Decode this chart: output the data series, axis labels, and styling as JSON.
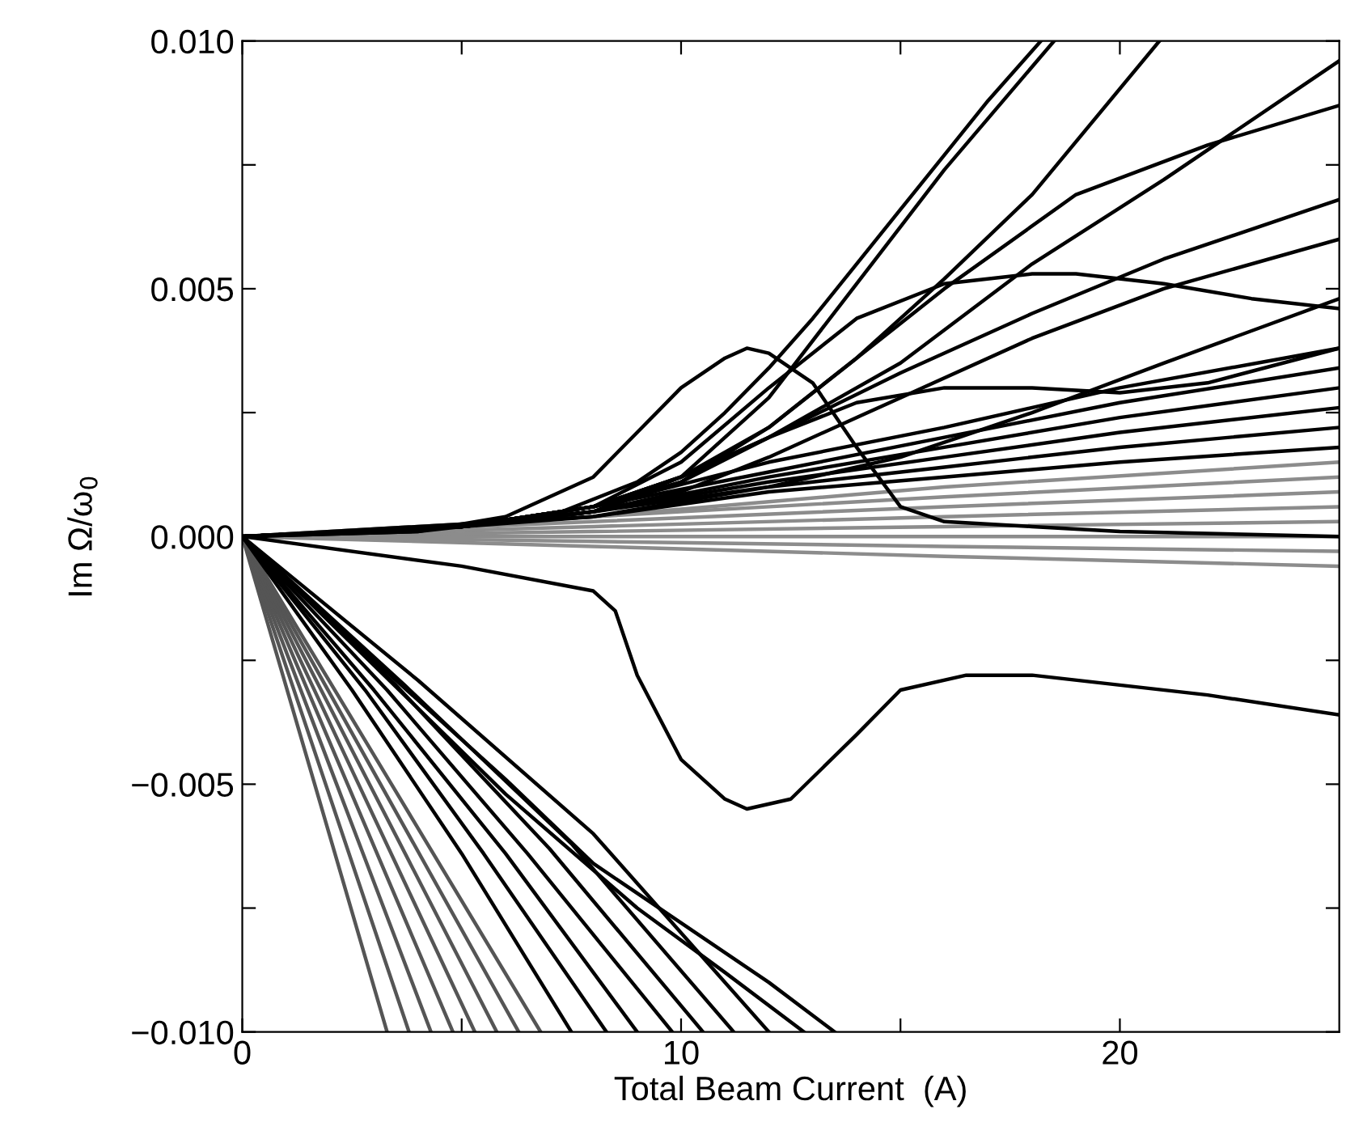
{
  "chart_data": {
    "type": "line",
    "xlabel": "Total Beam Current  (A)",
    "ylabel": "Im Ω/ω$_{0}$",
    "xlim": [
      0,
      25
    ],
    "ylim": [
      -0.01,
      0.01
    ],
    "xticks": [
      0,
      {
        "value": 5,
        "label": null
      },
      10,
      {
        "value": 15,
        "label": null
      },
      20
    ],
    "yticks": [
      {
        "value": -0.01,
        "label": "−0.010"
      },
      {
        "value": -0.0075,
        "label": null
      },
      {
        "value": -0.005,
        "label": "−0.005"
      },
      {
        "value": -0.0025,
        "label": null
      },
      {
        "value": 0.0,
        "label": "0.000"
      },
      {
        "value": 0.0025,
        "label": null
      },
      {
        "value": 0.005,
        "label": "0.005"
      },
      {
        "value": 0.0075,
        "label": null
      },
      {
        "value": 0.01,
        "label": "0.010"
      }
    ],
    "grid": false,
    "legend": false,
    "marker": "none",
    "line_style": "solid",
    "series": [
      {
        "color": "#8c8c8c",
        "x": [
          0,
          8,
          16,
          25
        ],
        "values": [
          0,
          -0.0002,
          -0.0004,
          -0.0006
        ]
      },
      {
        "color": "#8c8c8c",
        "x": [
          0,
          8,
          16,
          25
        ],
        "values": [
          0,
          -0.0001,
          -0.0002,
          -0.0003
        ]
      },
      {
        "color": "#8c8c8c",
        "x": [
          0,
          8,
          16,
          25
        ],
        "values": [
          0,
          0.0,
          0.0,
          0.0
        ]
      },
      {
        "color": "#8c8c8c",
        "x": [
          0,
          8,
          16,
          25
        ],
        "values": [
          0,
          0.0001,
          0.0002,
          0.0003
        ]
      },
      {
        "color": "#8c8c8c",
        "x": [
          0,
          8,
          16,
          25
        ],
        "values": [
          0,
          0.0002,
          0.0004,
          0.0006
        ]
      },
      {
        "color": "#8c8c8c",
        "x": [
          0,
          8,
          16,
          25
        ],
        "values": [
          0,
          0.0003,
          0.0006,
          0.0009
        ]
      },
      {
        "color": "#8c8c8c",
        "x": [
          0,
          8,
          16,
          25
        ],
        "values": [
          0,
          0.0004,
          0.0008,
          0.0012
        ]
      },
      {
        "color": "#8c8c8c",
        "x": [
          0,
          8,
          16,
          25
        ],
        "values": [
          0,
          0.0004,
          0.001,
          0.0015
        ]
      },
      {
        "color": "#000000",
        "x": [
          0,
          5,
          8,
          12,
          16,
          20,
          25
        ],
        "values": [
          0,
          0.0002,
          0.0004,
          0.0009,
          0.0012,
          0.0015,
          0.0018
        ]
      },
      {
        "color": "#000000",
        "x": [
          0,
          5,
          8,
          12,
          16,
          20,
          25
        ],
        "values": [
          0,
          0.0002,
          0.0005,
          0.001,
          0.0014,
          0.0018,
          0.0022
        ]
      },
      {
        "color": "#000000",
        "x": [
          0,
          5,
          8,
          12,
          16,
          20,
          25
        ],
        "values": [
          0,
          0.0002,
          0.0005,
          0.0011,
          0.0016,
          0.0021,
          0.0026
        ]
      },
      {
        "color": "#000000",
        "x": [
          0,
          5,
          8,
          12,
          16,
          20,
          25
        ],
        "values": [
          0,
          0.0002,
          0.0005,
          0.0012,
          0.0018,
          0.0024,
          0.003
        ]
      },
      {
        "color": "#000000",
        "x": [
          0,
          5,
          8,
          12,
          16,
          20,
          25
        ],
        "values": [
          0,
          0.0002,
          0.0006,
          0.0013,
          0.002,
          0.0027,
          0.0034
        ]
      },
      {
        "color": "#000000",
        "x": [
          0,
          5,
          8,
          12,
          16,
          20,
          25
        ],
        "values": [
          0,
          0.0002,
          0.0006,
          0.0015,
          0.0022,
          0.003,
          0.0038
        ]
      },
      {
        "color": "#555555",
        "x": [
          0,
          1.65,
          3.3
        ],
        "values": [
          0,
          -0.005,
          -0.01
        ]
      },
      {
        "color": "#555555",
        "x": [
          0,
          1.9,
          3.8
        ],
        "values": [
          0,
          -0.005,
          -0.01
        ]
      },
      {
        "color": "#555555",
        "x": [
          0,
          2.15,
          4.3
        ],
        "values": [
          0,
          -0.005,
          -0.01
        ]
      },
      {
        "color": "#555555",
        "x": [
          0,
          2.4,
          4.8
        ],
        "values": [
          0,
          -0.005,
          -0.01
        ]
      },
      {
        "color": "#555555",
        "x": [
          0,
          2.65,
          5.3
        ],
        "values": [
          0,
          -0.005,
          -0.01
        ]
      },
      {
        "color": "#555555",
        "x": [
          0,
          2.9,
          5.8
        ],
        "values": [
          0,
          -0.005,
          -0.01
        ]
      },
      {
        "color": "#555555",
        "x": [
          0,
          3.15,
          6.3
        ],
        "values": [
          0,
          -0.005,
          -0.01
        ]
      },
      {
        "color": "#555555",
        "x": [
          0,
          3.4,
          6.8
        ],
        "values": [
          0,
          -0.005,
          -0.01
        ]
      },
      {
        "color": "#000000",
        "x": [
          0,
          4,
          7,
          9,
          10,
          11,
          12,
          13,
          14,
          15,
          16,
          17,
          18.2
        ],
        "values": [
          0,
          0.0001,
          0.0004,
          0.0011,
          0.0017,
          0.0025,
          0.0034,
          0.0044,
          0.0055,
          0.0066,
          0.0077,
          0.0088,
          0.01
        ]
      },
      {
        "color": "#000000",
        "x": [
          0,
          5,
          8,
          10,
          12,
          14,
          16,
          18.5
        ],
        "values": [
          0,
          0.0002,
          0.0005,
          0.0012,
          0.0028,
          0.0051,
          0.0074,
          0.01
        ]
      },
      {
        "color": "#000000",
        "x": [
          0,
          5,
          8,
          10,
          12,
          14,
          16,
          18,
          20.9
        ],
        "values": [
          0,
          0.0002,
          0.0006,
          0.0012,
          0.0022,
          0.0036,
          0.0052,
          0.0069,
          0.01
        ]
      },
      {
        "color": "#000000",
        "x": [
          0,
          5,
          8,
          10,
          12,
          15,
          18,
          21,
          25
        ],
        "values": [
          0,
          0.0002,
          0.0006,
          0.0012,
          0.002,
          0.0035,
          0.0055,
          0.0072,
          0.0096
        ]
      },
      {
        "color": "#000000",
        "x": [
          0,
          5,
          8,
          10,
          12,
          14,
          16,
          19,
          22,
          25
        ],
        "values": [
          0,
          0.0002,
          0.0006,
          0.0011,
          0.0022,
          0.0036,
          0.005,
          0.0069,
          0.0079,
          0.0087
        ]
      },
      {
        "color": "#000000",
        "x": [
          0,
          5,
          8,
          10,
          12,
          15,
          18,
          21,
          25
        ],
        "values": [
          0,
          0.0002,
          0.0005,
          0.0011,
          0.002,
          0.0033,
          0.0045,
          0.0056,
          0.0068
        ]
      },
      {
        "color": "#000000",
        "x": [
          0,
          5,
          8,
          10,
          12,
          15,
          18,
          21,
          25
        ],
        "values": [
          0,
          0.0002,
          0.0005,
          0.0009,
          0.0016,
          0.0028,
          0.004,
          0.005,
          0.006
        ]
      },
      {
        "color": "#000000",
        "x": [
          0,
          5,
          8,
          10,
          12,
          14,
          16,
          18,
          19,
          21,
          23,
          25
        ],
        "values": [
          0,
          0.0002,
          0.0006,
          0.0015,
          0.003,
          0.0044,
          0.0051,
          0.0053,
          0.0053,
          0.0051,
          0.0048,
          0.0046
        ]
      },
      {
        "color": "#000000",
        "x": [
          0,
          4,
          6,
          8,
          9,
          10,
          11,
          11.5,
          12,
          13,
          14,
          15,
          16,
          18,
          20,
          25
        ],
        "values": [
          0,
          0.0001,
          0.0004,
          0.0012,
          0.0021,
          0.003,
          0.0036,
          0.0038,
          0.0037,
          0.0031,
          0.0018,
          0.0006,
          0.0003,
          0.0002,
          0.0001,
          0.0
        ]
      },
      {
        "color": "#000000",
        "x": [
          0,
          5,
          8,
          10,
          12,
          14,
          16,
          18,
          20,
          22,
          25
        ],
        "values": [
          0,
          0.0002,
          0.0006,
          0.0012,
          0.002,
          0.0027,
          0.003,
          0.003,
          0.0029,
          0.0031,
          0.0038
        ]
      },
      {
        "color": "#000000",
        "x": [
          0,
          8,
          12,
          15,
          18,
          21,
          25
        ],
        "values": [
          0,
          0.0004,
          0.001,
          0.0016,
          0.0025,
          0.0035,
          0.0048
        ]
      },
      {
        "color": "#000000",
        "x": [
          0,
          5,
          8,
          8.5,
          9,
          10,
          11,
          11.5,
          12.5,
          14,
          15,
          16.5,
          18,
          20,
          22,
          25
        ],
        "values": [
          0,
          -0.0006,
          -0.0011,
          -0.0015,
          -0.0028,
          -0.0045,
          -0.0053,
          -0.0055,
          -0.0053,
          -0.004,
          -0.0031,
          -0.0028,
          -0.0028,
          -0.003,
          -0.0032,
          -0.0036
        ]
      },
      {
        "color": "#000000",
        "x": [
          0,
          2.5,
          5,
          7.5
        ],
        "values": [
          0,
          -0.0031,
          -0.0064,
          -0.01
        ]
      },
      {
        "color": "#000000",
        "x": [
          0,
          2.8,
          5.5,
          8.3
        ],
        "values": [
          0,
          -0.0031,
          -0.0064,
          -0.01
        ]
      },
      {
        "color": "#000000",
        "x": [
          0,
          3,
          6,
          9
        ],
        "values": [
          0,
          -0.0031,
          -0.0064,
          -0.01
        ]
      },
      {
        "color": "#000000",
        "x": [
          0,
          3.3,
          6.5,
          9.8
        ],
        "values": [
          0,
          -0.0031,
          -0.0064,
          -0.01
        ]
      },
      {
        "color": "#000000",
        "x": [
          0,
          3.5,
          7,
          10.5
        ],
        "values": [
          0,
          -0.003,
          -0.0063,
          -0.01
        ]
      },
      {
        "color": "#000000",
        "x": [
          0,
          3.7,
          7.5,
          11.2
        ],
        "values": [
          0,
          -0.003,
          -0.0062,
          -0.01
        ]
      },
      {
        "color": "#000000",
        "x": [
          0,
          4,
          8,
          12
        ],
        "values": [
          0,
          -0.0029,
          -0.006,
          -0.01
        ]
      },
      {
        "color": "#000000",
        "x": [
          0,
          3,
          6,
          9,
          11,
          12.8
        ],
        "values": [
          0,
          -0.0026,
          -0.0052,
          -0.0075,
          -0.0088,
          -0.01
        ]
      },
      {
        "color": "#000000",
        "x": [
          0,
          3,
          6,
          8,
          10,
          12,
          13.5
        ],
        "values": [
          0,
          -0.0025,
          -0.0049,
          -0.0066,
          -0.0078,
          -0.009,
          -0.01
        ]
      }
    ]
  }
}
